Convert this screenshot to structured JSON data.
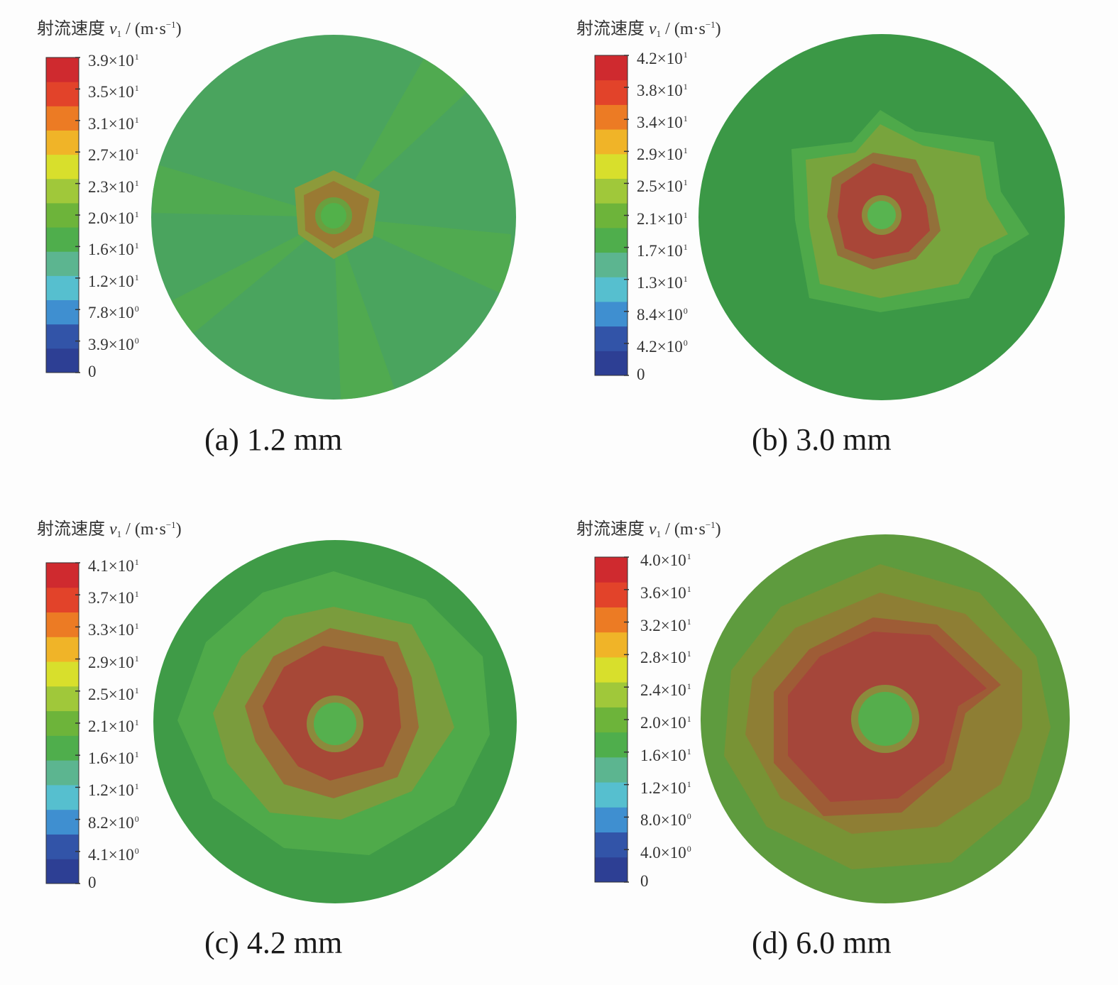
{
  "legend_title": {
    "label": "射流速度",
    "symbol": "v",
    "symbol_sub": "1",
    "unit_open": "/ (m·s",
    "unit_exp": "−1",
    "unit_close": ")"
  },
  "colorbar_colors": [
    "#2d3f94",
    "#3254a8",
    "#3f8fd0",
    "#56bfcf",
    "#5cb590",
    "#4fae4c",
    "#6db43a",
    "#a0c83a",
    "#d8df2c",
    "#f0b428",
    "#ec7b24",
    "#e2432a",
    "#cf2a2f"
  ],
  "panels": [
    {
      "caption": "(a) 1.2 mm",
      "ticks": [
        {
          "m": "3.9",
          "x": "×10",
          "e": "1"
        },
        {
          "m": "3.5",
          "x": "×10",
          "e": "1"
        },
        {
          "m": "3.1",
          "x": "×10",
          "e": "1"
        },
        {
          "m": "2.7",
          "x": "×10",
          "e": "1"
        },
        {
          "m": "2.3",
          "x": "×10",
          "e": "1"
        },
        {
          "m": "2.0",
          "x": "×10",
          "e": "1"
        },
        {
          "m": "1.6",
          "x": "×10",
          "e": "1"
        },
        {
          "m": "1.2",
          "x": "×10",
          "e": "1"
        },
        {
          "m": "7.8",
          "x": "×10",
          "e": "0"
        },
        {
          "m": "3.9",
          "x": "×10",
          "e": "0"
        },
        {
          "m": "0",
          "x": "",
          "e": ""
        }
      ]
    },
    {
      "caption": "(b) 3.0 mm",
      "ticks": [
        {
          "m": "4.2",
          "x": "×10",
          "e": "1"
        },
        {
          "m": "3.8",
          "x": "×10",
          "e": "1"
        },
        {
          "m": "3.4",
          "x": "×10",
          "e": "1"
        },
        {
          "m": "2.9",
          "x": "×10",
          "e": "1"
        },
        {
          "m": "2.5",
          "x": "×10",
          "e": "1"
        },
        {
          "m": "2.1",
          "x": "×10",
          "e": "1"
        },
        {
          "m": "1.7",
          "x": "×10",
          "e": "1"
        },
        {
          "m": "1.3",
          "x": "×10",
          "e": "1"
        },
        {
          "m": "8.4",
          "x": "×10",
          "e": "0"
        },
        {
          "m": "4.2",
          "x": "×10",
          "e": "0"
        },
        {
          "m": "0",
          "x": "",
          "e": ""
        }
      ]
    },
    {
      "caption": "(c) 4.2 mm",
      "ticks": [
        {
          "m": "4.1",
          "x": "×10",
          "e": "1"
        },
        {
          "m": "3.7",
          "x": "×10",
          "e": "1"
        },
        {
          "m": "3.3",
          "x": "×10",
          "e": "1"
        },
        {
          "m": "2.9",
          "x": "×10",
          "e": "1"
        },
        {
          "m": "2.5",
          "x": "×10",
          "e": "1"
        },
        {
          "m": "2.1",
          "x": "×10",
          "e": "1"
        },
        {
          "m": "1.6",
          "x": "×10",
          "e": "1"
        },
        {
          "m": "1.2",
          "x": "×10",
          "e": "1"
        },
        {
          "m": "8.2",
          "x": "×10",
          "e": "0"
        },
        {
          "m": "4.1",
          "x": "×10",
          "e": "0"
        },
        {
          "m": "0",
          "x": "",
          "e": ""
        }
      ]
    },
    {
      "caption": "(d) 6.0 mm",
      "ticks": [
        {
          "m": "4.0",
          "x": "×10",
          "e": "1"
        },
        {
          "m": "3.6",
          "x": "×10",
          "e": "1"
        },
        {
          "m": "3.2",
          "x": "×10",
          "e": "1"
        },
        {
          "m": "2.8",
          "x": "×10",
          "e": "1"
        },
        {
          "m": "2.4",
          "x": "×10",
          "e": "1"
        },
        {
          "m": "2.0",
          "x": "×10",
          "e": "1"
        },
        {
          "m": "1.6",
          "x": "×10",
          "e": "1"
        },
        {
          "m": "1.2",
          "x": "×10",
          "e": "1"
        },
        {
          "m": "8.0",
          "x": "×10",
          "e": "0"
        },
        {
          "m": "4.0",
          "x": "×10",
          "e": "0"
        },
        {
          "m": "0",
          "x": "",
          "e": ""
        }
      ]
    }
  ]
}
